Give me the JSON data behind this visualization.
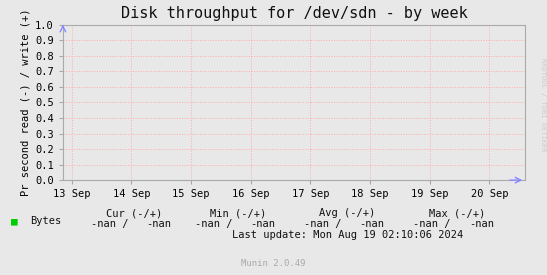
{
  "title": "Disk throughput for /dev/sdn - by week",
  "ylabel": "Pr second read (-) / write (+)",
  "background_color": "#e8e8e8",
  "plot_bg_color": "#e8e8e8",
  "grid_color": "#ffaaaa",
  "ylim": [
    0.0,
    1.0
  ],
  "yticks": [
    0.0,
    0.1,
    0.2,
    0.3,
    0.4,
    0.5,
    0.6,
    0.7,
    0.8,
    0.9,
    1.0
  ],
  "xtick_labels": [
    "13 Sep",
    "14 Sep",
    "15 Sep",
    "16 Sep",
    "17 Sep",
    "18 Sep",
    "19 Sep",
    "20 Sep"
  ],
  "xtick_positions": [
    0,
    1,
    2,
    3,
    4,
    5,
    6,
    7
  ],
  "xlim": [
    -0.15,
    7.6
  ],
  "legend_label": "Bytes",
  "legend_color": "#00cc00",
  "cur_label": "Cur (-/+)",
  "min_label": "Min (-/+)",
  "avg_label": "Avg (-/+)",
  "max_label": "Max (-/+)",
  "cur_val": "-nan /    -nan",
  "min_val": "-nan /    -nan",
  "avg_val": "-nan /    -nan",
  "max_val": "-nan /    -nan",
  "last_update": "Last update: Mon Aug 19 02:10:06 2024",
  "munin_version": "Munin 2.0.49",
  "watermark": "RRDTOOL / TOBI OETIKER",
  "title_fontsize": 11,
  "axis_fontsize": 7.5,
  "tick_fontsize": 7.5,
  "small_fontsize": 6.5,
  "border_color": "#aaaaaa",
  "arrow_color": "#8888ff"
}
